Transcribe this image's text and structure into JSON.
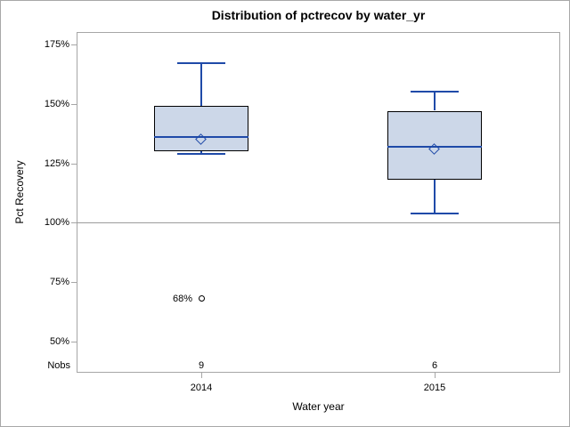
{
  "title": "Distribution of pctrecov by water_yr",
  "chart_data": {
    "type": "boxplot",
    "title": "Distribution of pctrecov by water_yr",
    "xlabel": "Water year",
    "ylabel": "Pct Recovery",
    "nobs_label": "Nobs",
    "y_axis": {
      "min": 50,
      "max": 175,
      "tick_step": 25,
      "tick_values": [
        175,
        150,
        125,
        100,
        75,
        50
      ],
      "tick_labels": [
        "175%",
        "150%",
        "125%",
        "100%",
        "75%",
        "50%"
      ],
      "unit": "%"
    },
    "reference_line": 100,
    "categories": [
      "2014",
      "2015"
    ],
    "series": [
      {
        "category": "2014",
        "nobs": "9",
        "whisker_low": 129,
        "q1": 130,
        "median": 136,
        "q3": 149,
        "whisker_high": 167,
        "mean": 135,
        "outliers": [
          {
            "value": 68,
            "label": "68%"
          }
        ]
      },
      {
        "category": "2015",
        "nobs": "6",
        "whisker_low": 104,
        "q1": 118,
        "median": 132,
        "q3": 147,
        "whisker_high": 155,
        "mean": 131,
        "outliers": []
      }
    ],
    "legend": "none",
    "grid": "off",
    "colors": {
      "box_fill": "#ccd7e8",
      "box_border": "#000000",
      "whisker": "#1f4aa8",
      "median": "#1f4aa8",
      "mean_marker": "#1f4aa8",
      "outlier": "#000000",
      "frame": "#a6a6a6",
      "reference_line": "#9c9c9c",
      "text": "#000000"
    }
  }
}
